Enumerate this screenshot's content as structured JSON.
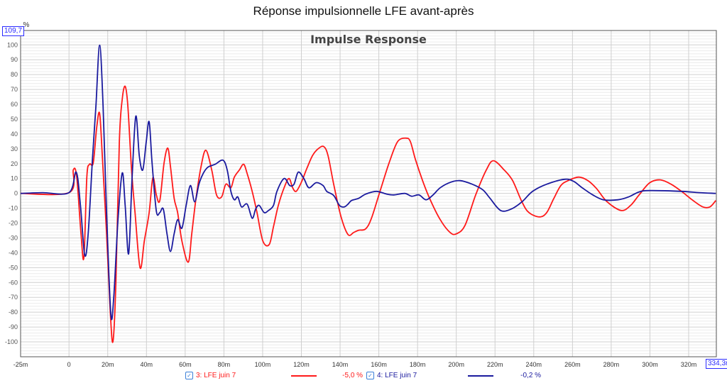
{
  "title": "Réponse impulsionnelle LFE avant-après",
  "chart_data": {
    "type": "line",
    "title": "Impulse Response",
    "xlabel": "",
    "ylabel": "%",
    "xlim": [
      -25,
      334.3
    ],
    "ylim": [
      -110,
      109.7
    ],
    "x_cursor_label": "334,3m",
    "y_cursor_label": "109,7",
    "x_ticks": [
      {
        "v": -25,
        "label": "-25m"
      },
      {
        "v": 0,
        "label": "0"
      },
      {
        "v": 20,
        "label": "20m"
      },
      {
        "v": 40,
        "label": "40m"
      },
      {
        "v": 60,
        "label": "60m"
      },
      {
        "v": 80,
        "label": "80m"
      },
      {
        "v": 100,
        "label": "100m"
      },
      {
        "v": 120,
        "label": "120m"
      },
      {
        "v": 140,
        "label": "140m"
      },
      {
        "v": 160,
        "label": "160m"
      },
      {
        "v": 180,
        "label": "180m"
      },
      {
        "v": 200,
        "label": "200m"
      },
      {
        "v": 220,
        "label": "220m"
      },
      {
        "v": 240,
        "label": "240m"
      },
      {
        "v": 260,
        "label": "260m"
      },
      {
        "v": 280,
        "label": "280m"
      },
      {
        "v": 300,
        "label": "300m"
      },
      {
        "v": 320,
        "label": "320m"
      }
    ],
    "y_ticks": [
      100,
      90,
      80,
      70,
      60,
      50,
      40,
      30,
      20,
      10,
      0,
      -10,
      -20,
      -30,
      -40,
      -50,
      -60,
      -70,
      -80,
      -90,
      -100
    ],
    "grid": true,
    "legend_placement": "bottom",
    "series": [
      {
        "name": "3: LFE juin 7",
        "value_label": "-5,0 %",
        "color": "#ff1a1a",
        "points": [
          [
            -25,
            0
          ],
          [
            0,
            0.5
          ],
          [
            2.2,
            15.8
          ],
          [
            4,
            11
          ],
          [
            6.2,
            -27.2
          ],
          [
            7.7,
            -43
          ],
          [
            9.2,
            11
          ],
          [
            10.6,
            19.6
          ],
          [
            12.5,
            20.5
          ],
          [
            14.3,
            44.4
          ],
          [
            15.8,
            53.9
          ],
          [
            17.2,
            25.3
          ],
          [
            19.4,
            -27.2
          ],
          [
            21.3,
            -79.7
          ],
          [
            22.7,
            -99.8
          ],
          [
            24.2,
            -60.6
          ],
          [
            26,
            34.8
          ],
          [
            27.5,
            63.5
          ],
          [
            29,
            72.1
          ],
          [
            30.4,
            58.7
          ],
          [
            32.3,
            15.8
          ],
          [
            34.1,
            -12.9
          ],
          [
            36.7,
            -50.1
          ],
          [
            38.9,
            -32
          ],
          [
            41.4,
            -12.9
          ],
          [
            43.3,
            10.5
          ],
          [
            45.1,
            -1
          ],
          [
            46.9,
            -4.8
          ],
          [
            49.1,
            20.5
          ],
          [
            51,
            30.5
          ],
          [
            52.4,
            18.1
          ],
          [
            54.3,
            -3.3
          ],
          [
            56.1,
            -12.9
          ],
          [
            58.3,
            -32
          ],
          [
            61.6,
            -46.3
          ],
          [
            63.4,
            -27.2
          ],
          [
            65.6,
            -3.3
          ],
          [
            68.2,
            18.1
          ],
          [
            70.7,
            29.1
          ],
          [
            73.7,
            15.8
          ],
          [
            76.2,
            -1
          ],
          [
            78.8,
            -2.4
          ],
          [
            81,
            6.2
          ],
          [
            83.6,
            3.8
          ],
          [
            85.4,
            11
          ],
          [
            88,
            15.8
          ],
          [
            90.2,
            19.6
          ],
          [
            92,
            13.4
          ],
          [
            94.6,
            1.4
          ],
          [
            97.1,
            -12.9
          ],
          [
            100.1,
            -32
          ],
          [
            103.4,
            -34.4
          ],
          [
            105.6,
            -22.4
          ],
          [
            108.1,
            -8.1
          ],
          [
            111.1,
            3.8
          ],
          [
            113.6,
            10
          ],
          [
            115.5,
            3.8
          ],
          [
            117.3,
            1.4
          ],
          [
            119.9,
            7.2
          ],
          [
            122.8,
            16.7
          ],
          [
            125.7,
            25.3
          ],
          [
            128.7,
            30.1
          ],
          [
            131.6,
            31.5
          ],
          [
            133.8,
            25.3
          ],
          [
            136.7,
            6.2
          ],
          [
            140.4,
            -15.3
          ],
          [
            144.1,
            -27.7
          ],
          [
            147,
            -26.3
          ],
          [
            149.6,
            -24.8
          ],
          [
            153.2,
            -23.9
          ],
          [
            156.2,
            -16.7
          ],
          [
            160.6,
            1.4
          ],
          [
            165.3,
            20.5
          ],
          [
            169.7,
            34.8
          ],
          [
            174.1,
            37.2
          ],
          [
            176.3,
            34.8
          ],
          [
            178.9,
            22.9
          ],
          [
            182.6,
            8.6
          ],
          [
            186.2,
            -3.3
          ],
          [
            191.7,
            -17.7
          ],
          [
            196.8,
            -26.3
          ],
          [
            200.1,
            -27.2
          ],
          [
            204.5,
            -21.5
          ],
          [
            210,
            -1
          ],
          [
            215.5,
            15.8
          ],
          [
            219.2,
            22
          ],
          [
            224.7,
            15.8
          ],
          [
            229.1,
            8.6
          ],
          [
            233.9,
            -5.7
          ],
          [
            237.5,
            -12.9
          ],
          [
            243,
            -15.8
          ],
          [
            246.7,
            -12.9
          ],
          [
            250.4,
            -3.3
          ],
          [
            254,
            5.3
          ],
          [
            257.7,
            8.6
          ],
          [
            263.2,
            11
          ],
          [
            268,
            8.6
          ],
          [
            272.4,
            3.3
          ],
          [
            277.9,
            -5.7
          ],
          [
            285.2,
            -11.5
          ],
          [
            290,
            -8.1
          ],
          [
            294.4,
            -1
          ],
          [
            299.9,
            7.2
          ],
          [
            305.4,
            9.1
          ],
          [
            310.9,
            6.2
          ],
          [
            316.3,
            1.4
          ],
          [
            321.8,
            -4.3
          ],
          [
            327.3,
            -9.1
          ],
          [
            331,
            -9.1
          ],
          [
            334,
            -4.8
          ]
        ]
      },
      {
        "name": "4: LFE juin 7",
        "value_label": "-0,2 %",
        "color": "#1a1a9e",
        "points": [
          [
            -25,
            0
          ],
          [
            -13.6,
            0.5
          ],
          [
            0,
            0.5
          ],
          [
            3.7,
            14.3
          ],
          [
            5.9,
            -8.1
          ],
          [
            8.1,
            -41.5
          ],
          [
            9.9,
            -27.2
          ],
          [
            12.1,
            22.9
          ],
          [
            13.9,
            58.7
          ],
          [
            15.8,
            99.8
          ],
          [
            17.6,
            58.7
          ],
          [
            19.4,
            -12.9
          ],
          [
            21.6,
            -81.1
          ],
          [
            23.1,
            -70.2
          ],
          [
            25.3,
            -17.7
          ],
          [
            27.5,
            13.8
          ],
          [
            29,
            -8.1
          ],
          [
            30.8,
            -40.6
          ],
          [
            32.6,
            11
          ],
          [
            34.5,
            52
          ],
          [
            36.3,
            25.3
          ],
          [
            38.1,
            15.8
          ],
          [
            39.9,
            34.8
          ],
          [
            41.4,
            48.2
          ],
          [
            42.9,
            20.5
          ],
          [
            45.1,
            -11.9
          ],
          [
            46.9,
            -12.9
          ],
          [
            48.7,
            -10.5
          ],
          [
            50.6,
            -27.2
          ],
          [
            52.4,
            -39.1
          ],
          [
            54.3,
            -27.2
          ],
          [
            56.1,
            -17.7
          ],
          [
            58.3,
            -23.4
          ],
          [
            60.5,
            -8.1
          ],
          [
            62.7,
            5.3
          ],
          [
            64.9,
            -5.7
          ],
          [
            67.1,
            6.2
          ],
          [
            69.3,
            13.4
          ],
          [
            71.8,
            17.7
          ],
          [
            75.5,
            19.6
          ],
          [
            79.5,
            22.4
          ],
          [
            81.7,
            15.8
          ],
          [
            83.6,
            1.4
          ],
          [
            85.4,
            -4.3
          ],
          [
            87.2,
            -2.4
          ],
          [
            89.1,
            -9.1
          ],
          [
            92,
            -7.2
          ],
          [
            94.6,
            -16.7
          ],
          [
            96.4,
            -10.5
          ],
          [
            98.2,
            -8.1
          ],
          [
            100.8,
            -12.9
          ],
          [
            103,
            -11.5
          ],
          [
            105.6,
            -8.1
          ],
          [
            107.4,
            1.4
          ],
          [
            111.1,
            10
          ],
          [
            114,
            5.3
          ],
          [
            116.2,
            6.2
          ],
          [
            118.4,
            14.3
          ],
          [
            121.3,
            10
          ],
          [
            123.9,
            3.8
          ],
          [
            127.6,
            7.2
          ],
          [
            131.2,
            5.3
          ],
          [
            133.1,
            1.4
          ],
          [
            136.7,
            -1.4
          ],
          [
            139.7,
            -8.1
          ],
          [
            142.2,
            -9.1
          ],
          [
            144.1,
            -7.2
          ],
          [
            145.9,
            -4.8
          ],
          [
            149.6,
            -3.3
          ],
          [
            153.2,
            -0.5
          ],
          [
            158.7,
            1.4
          ],
          [
            164.2,
            -0.5
          ],
          [
            167.9,
            -1
          ],
          [
            173.4,
            0
          ],
          [
            177,
            -1.9
          ],
          [
            180.7,
            -1
          ],
          [
            184.4,
            -4.3
          ],
          [
            188,
            -1
          ],
          [
            191.7,
            3.8
          ],
          [
            197.2,
            7.6
          ],
          [
            202,
            8.6
          ],
          [
            208.2,
            6.2
          ],
          [
            213.7,
            2.4
          ],
          [
            217.4,
            -3.3
          ],
          [
            222.9,
            -11.5
          ],
          [
            228.4,
            -10.5
          ],
          [
            233.9,
            -5.7
          ],
          [
            239.4,
            1.4
          ],
          [
            246.7,
            6.2
          ],
          [
            255.9,
            9.5
          ],
          [
            260.6,
            8.1
          ],
          [
            265,
            3.8
          ],
          [
            270.5,
            -1
          ],
          [
            276,
            -4.3
          ],
          [
            283.4,
            -4.3
          ],
          [
            288.9,
            -2.4
          ],
          [
            294.4,
            1
          ],
          [
            299.9,
            1.9
          ],
          [
            316.3,
            1.4
          ],
          [
            325.5,
            0.5
          ],
          [
            334,
            0
          ]
        ]
      }
    ]
  }
}
